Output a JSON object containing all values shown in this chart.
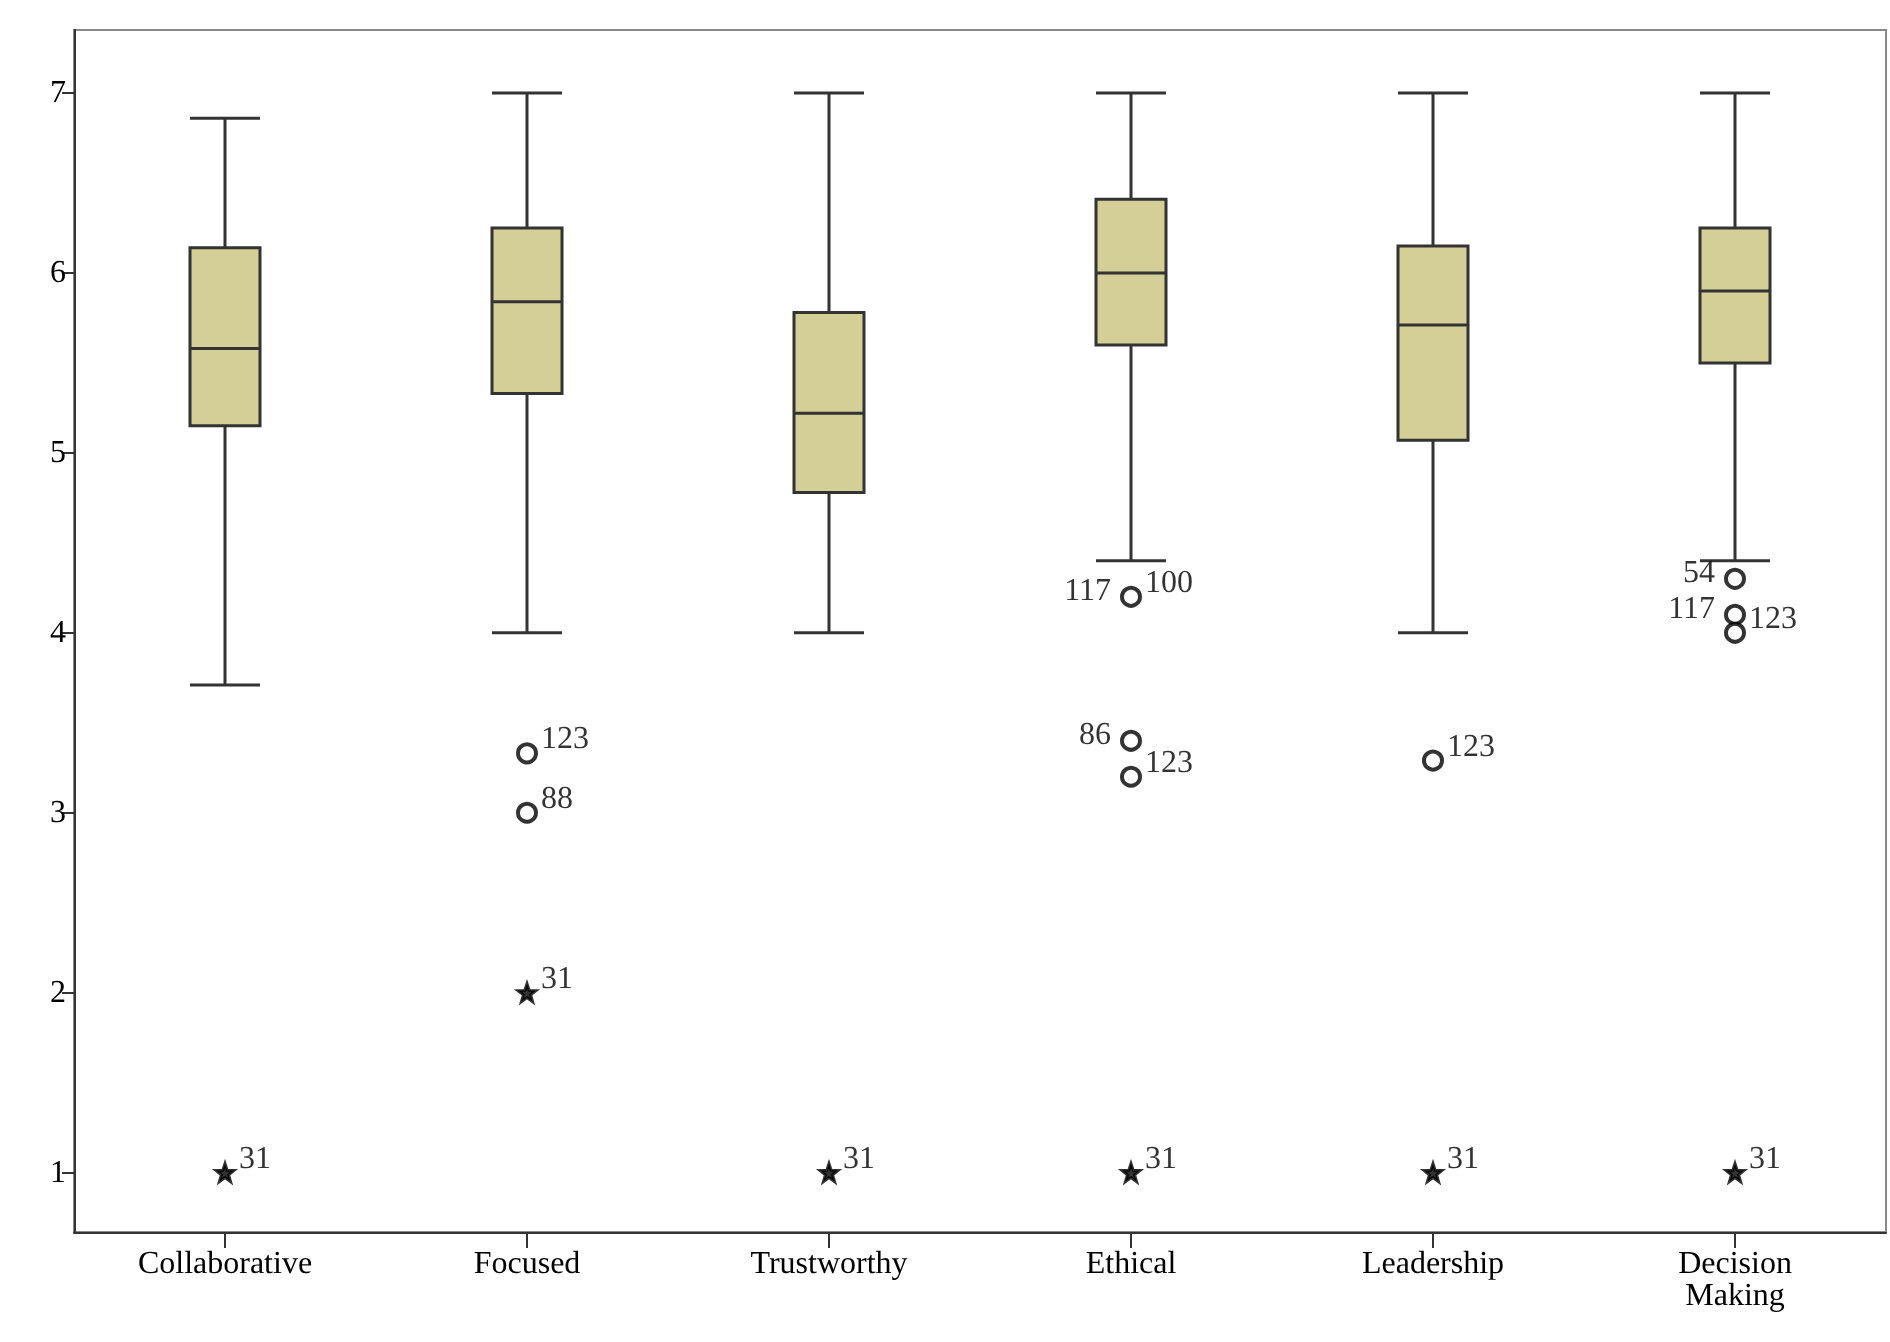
{
  "chart_data": {
    "type": "box",
    "categories": [
      "Collaborative",
      "Focused",
      "Trustworthy",
      "Ethical",
      "Leadership",
      "Decision\nMaking"
    ],
    "series": [
      {
        "color": "#d4cf96",
        "boxes": [
          {
            "low": 3.71,
            "q1": 5.15,
            "median": 5.58,
            "q3": 6.14,
            "high": 6.86
          },
          {
            "low": 4,
            "q1": 5.33,
            "median": 5.84,
            "q3": 6.25,
            "high": 7
          },
          {
            "low": 4,
            "q1": 4.78,
            "median": 5.22,
            "q3": 5.78,
            "high": 7
          },
          {
            "low": 4.4,
            "q1": 5.6,
            "median": 6.0,
            "q3": 6.41,
            "high": 7
          },
          {
            "low": 4,
            "q1": 5.07,
            "median": 5.71,
            "q3": 6.15,
            "high": 7
          },
          {
            "low": 4.4,
            "q1": 5.5,
            "median": 5.9,
            "q3": 6.25,
            "high": 7
          }
        ]
      },
      {
        "type": "scatter",
        "color": "#000000",
        "marker": "circle",
        "x": [
          "Focused",
          "Focused",
          "Ethical",
          "Ethical",
          "Ethical",
          "Leadership",
          "Decision\nMaking",
          "Decision\nMaking",
          "Decision\nMaking"
        ],
        "values": [
          3.33,
          3.0,
          4.2,
          3.4,
          3.2,
          3.29,
          4.3,
          4.1,
          4.0
        ]
      },
      {
        "type": "scatter",
        "color": "#000000",
        "marker": "star",
        "x": [
          "Collaborative",
          "Focused",
          "Trustworthy",
          "Ethical",
          "Leadership",
          "Decision\nMaking"
        ],
        "values": [
          1,
          2,
          1,
          1,
          1,
          1
        ]
      }
    ],
    "ylim": [
      0.67,
      7.35
    ],
    "yticks": [
      1,
      2,
      3,
      4,
      5,
      6,
      7
    ],
    "grid": false,
    "annotations": [
      {
        "text": "31",
        "x": "Collaborative",
        "y": 1
      },
      {
        "text": "123",
        "x": "Focused",
        "y": 3.33
      },
      {
        "text": "88",
        "x": "Focused",
        "y": 3.0
      },
      {
        "text": "31",
        "x": "Focused",
        "y": 2
      },
      {
        "text": "31",
        "x": "Trustworthy",
        "y": 1
      },
      {
        "text": "100",
        "x": "Ethical",
        "y": 4.2
      },
      {
        "text": "117",
        "x": "Ethical",
        "y": 4.2
      },
      {
        "text": "123",
        "x": "Ethical",
        "y": 3.2
      },
      {
        "text": "86",
        "x": "Ethical",
        "y": 3.4
      },
      {
        "text": "31",
        "x": "Ethical",
        "y": 1
      },
      {
        "text": "123",
        "x": "Leadership",
        "y": 3.29
      },
      {
        "text": "31",
        "x": "Leadership",
        "y": 1
      },
      {
        "text": "123",
        "x": "Decision\nMaking",
        "y": 4.0
      },
      {
        "text": "117",
        "x": "Decision\nMaking",
        "y": 4.1
      },
      {
        "text": "54",
        "x": "Decision\nMaking",
        "y": 4.3
      },
      {
        "text": "31",
        "x": "Decision\nMaking",
        "y": 1
      }
    ]
  }
}
